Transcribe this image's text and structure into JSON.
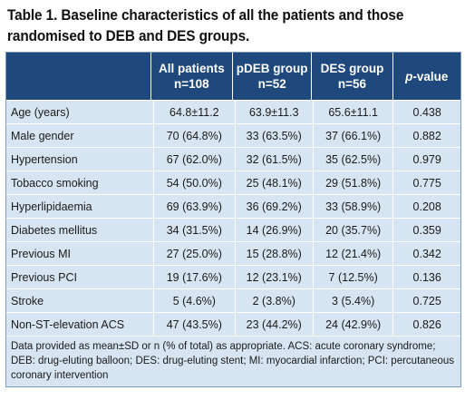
{
  "title_line1": "Table 1. Baseline characteristics of all the patients and those",
  "title_line2": "randomised to DEB and DES groups.",
  "headers": [
    {
      "l1": "",
      "l2": ""
    },
    {
      "l1": "All patients",
      "l2": "n=108"
    },
    {
      "l1": "pDEB group",
      "l2": "n=52"
    },
    {
      "l1": "DES group",
      "l2": "n=56"
    },
    {
      "l1": "p",
      "l1_rest": "-value",
      "l2": ""
    }
  ],
  "rows": [
    [
      "Age (years)",
      "64.8±11.2",
      "63.9±11.3",
      "65.6±11.1",
      "0.438"
    ],
    [
      "Male gender",
      "70 (64.8%)",
      "33 (63.5%)",
      "37 (66.1%)",
      "0.882"
    ],
    [
      "Hypertension",
      "67 (62.0%)",
      "32 (61.5%)",
      "35 (62.5%)",
      "0.979"
    ],
    [
      "Tobacco smoking",
      "54 (50.0%)",
      "25 (48.1%)",
      "29 (51.8%)",
      "0.775"
    ],
    [
      "Hyperlipidaemia",
      "69 (63.9%)",
      "36 (69.2%)",
      "33 (58.9%)",
      "0.208"
    ],
    [
      "Diabetes mellitus",
      "34 (31.5%)",
      "14 (26.9%)",
      "20 (35.7%)",
      "0.359"
    ],
    [
      "Previous MI",
      "27 (25.0%)",
      "15 (28.8%)",
      "12 (21.4%)",
      "0.342"
    ],
    [
      "Previous PCI",
      "19 (17.6%)",
      "12 (23.1%)",
      "7 (12.5%)",
      "0.136"
    ],
    [
      "Stroke",
      "5 (4.6%)",
      "2 (3.8%)",
      "3 (5.4%)",
      "0.725"
    ],
    [
      "Non-ST-elevation ACS",
      "47 (43.5%)",
      "23 (44.2%)",
      "24 (42.9%)",
      "0.826"
    ]
  ],
  "footnote": "Data provided as mean±SD or n (% of total) as appropriate. ACS: acute coronary syndrome; DEB: drug-eluting balloon; DES: drug-eluting stent; MI: myocardial infarction; PCI: percutaneous coronary intervention",
  "colors": {
    "header_bg": "#1f497d",
    "row_bg": "#d7e5f2",
    "divider": "#ffffff"
  }
}
